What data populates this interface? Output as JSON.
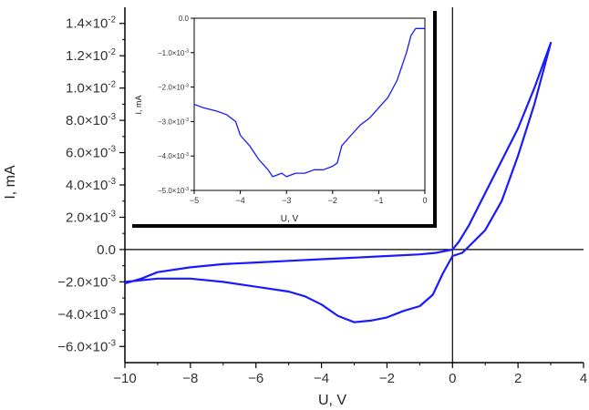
{
  "colors": {
    "series": "#1a1aff",
    "axis": "#000000",
    "text": "#333333"
  },
  "chart_data": [
    {
      "type": "line",
      "role": "main",
      "xlabel": "U, V",
      "ylabel": "I, mA",
      "xlim": [
        -10,
        4
      ],
      "ylim": [
        -0.007,
        0.015
      ],
      "xticks": [
        -10,
        -8,
        -6,
        -4,
        -2,
        0,
        2,
        4
      ],
      "xtick_labels": [
        "−10",
        "−8",
        "−6",
        "−4",
        "−2",
        "0",
        "2",
        "4"
      ],
      "yticks": [
        -0.006,
        -0.004,
        -0.002,
        0.0,
        0.002,
        0.004,
        0.006,
        0.008,
        0.01,
        0.012,
        0.014
      ],
      "ytick_labels": [
        {
          "m": "−6.0×10",
          "e": "-3"
        },
        {
          "m": "−4.0×10",
          "e": "-3"
        },
        {
          "m": "−2.0×10",
          "e": "-3"
        },
        {
          "m": "0.0",
          "e": ""
        },
        {
          "m": "2.0×10",
          "e": "-3"
        },
        {
          "m": "4.0×10",
          "e": "-3"
        },
        {
          "m": "6.0×10",
          "e": "-3"
        },
        {
          "m": "8.0×10",
          "e": "-3"
        },
        {
          "m": "1.0×10",
          "e": "-2"
        },
        {
          "m": "1.2×10",
          "e": "-2"
        },
        {
          "m": "1.4×10",
          "e": "-2"
        }
      ],
      "crosshair": {
        "x": 0,
        "y": 0
      },
      "grid": false,
      "series": [
        {
          "points": [
            [
              -10,
              -0.0021
            ],
            [
              -9.5,
              -0.0018
            ],
            [
              -9,
              -0.0014
            ],
            [
              -8,
              -0.0011
            ],
            [
              -7,
              -0.0009
            ],
            [
              -6,
              -0.0008
            ],
            [
              -5,
              -0.0007
            ],
            [
              -4,
              -0.0006
            ],
            [
              -3,
              -0.0005
            ],
            [
              -2,
              -0.0004
            ],
            [
              -1,
              -0.0003
            ],
            [
              -0.5,
              -0.0002
            ],
            [
              0,
              0.0
            ],
            [
              0.2,
              0.0005
            ],
            [
              0.5,
              0.0015
            ],
            [
              1,
              0.0035
            ],
            [
              1.5,
              0.0055
            ],
            [
              2,
              0.0075
            ],
            [
              2.5,
              0.01
            ],
            [
              3,
              0.0128
            ],
            [
              2.5,
              0.009
            ],
            [
              2,
              0.0058
            ],
            [
              1.5,
              0.003
            ],
            [
              1,
              0.0012
            ],
            [
              0.5,
              0.0002
            ],
            [
              0.3,
              -0.0002
            ],
            [
              0,
              -0.0004
            ],
            [
              -0.3,
              -0.0015
            ],
            [
              -0.6,
              -0.0028
            ],
            [
              -1,
              -0.0035
            ],
            [
              -1.5,
              -0.0038
            ],
            [
              -2,
              -0.0042
            ],
            [
              -2.5,
              -0.0044
            ],
            [
              -3,
              -0.0045
            ],
            [
              -3.5,
              -0.0041
            ],
            [
              -4,
              -0.0034
            ],
            [
              -4.5,
              -0.0029
            ],
            [
              -5,
              -0.0026
            ],
            [
              -6,
              -0.0023
            ],
            [
              -7,
              -0.002
            ],
            [
              -8,
              -0.0018
            ],
            [
              -9,
              -0.0018
            ],
            [
              -10,
              -0.002
            ]
          ]
        }
      ]
    },
    {
      "type": "line",
      "role": "inset",
      "xlabel": "U, V",
      "ylabel": "I, mA",
      "xlim": [
        -5,
        0
      ],
      "ylim": [
        -0.005,
        0.0
      ],
      "xticks": [
        -5,
        -4,
        -3,
        -2,
        -1,
        0
      ],
      "xtick_labels": [
        "−5",
        "−4",
        "−3",
        "−2",
        "−1",
        "0"
      ],
      "yticks": [
        -0.005,
        -0.004,
        -0.003,
        -0.002,
        -0.001,
        0.0
      ],
      "ytick_labels": [
        {
          "m": "−5.0×10",
          "e": "-3"
        },
        {
          "m": "−4.0×10",
          "e": "-3"
        },
        {
          "m": "−3.0×10",
          "e": "-3"
        },
        {
          "m": "−2.0×10",
          "e": "-3"
        },
        {
          "m": "−1.0×10",
          "e": "-3"
        },
        {
          "m": "0.0",
          "e": ""
        }
      ],
      "grid": false,
      "series": [
        {
          "points": [
            [
              -5,
              -0.0025
            ],
            [
              -4.8,
              -0.0026
            ],
            [
              -4.5,
              -0.0027
            ],
            [
              -4.3,
              -0.0028
            ],
            [
              -4.1,
              -0.003
            ],
            [
              -4.0,
              -0.0034
            ],
            [
              -3.8,
              -0.0037
            ],
            [
              -3.6,
              -0.0041
            ],
            [
              -3.4,
              -0.0044
            ],
            [
              -3.3,
              -0.0046
            ],
            [
              -3.1,
              -0.0045
            ],
            [
              -3.0,
              -0.0046
            ],
            [
              -2.8,
              -0.0045
            ],
            [
              -2.6,
              -0.0045
            ],
            [
              -2.4,
              -0.0044
            ],
            [
              -2.2,
              -0.0044
            ],
            [
              -2.0,
              -0.0043
            ],
            [
              -1.9,
              -0.0042
            ],
            [
              -1.8,
              -0.0037
            ],
            [
              -1.6,
              -0.0034
            ],
            [
              -1.4,
              -0.0031
            ],
            [
              -1.2,
              -0.0029
            ],
            [
              -1.0,
              -0.0026
            ],
            [
              -0.8,
              -0.0023
            ],
            [
              -0.6,
              -0.0018
            ],
            [
              -0.4,
              -0.001
            ],
            [
              -0.3,
              -0.0005
            ],
            [
              -0.2,
              -0.0003
            ],
            [
              0,
              -0.0003
            ]
          ]
        }
      ]
    }
  ]
}
